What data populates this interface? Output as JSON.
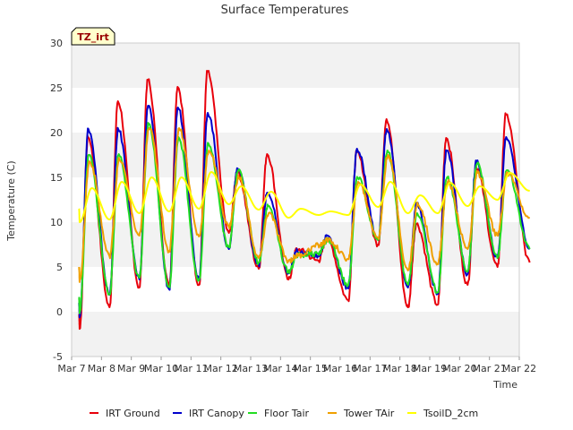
{
  "chart_data": {
    "type": "line",
    "title": "Surface Temperatures",
    "xlabel": "Time",
    "ylabel": "Temperature (C)",
    "badge": "TZ_irt",
    "ylim": [
      -5,
      30
    ],
    "xlim": [
      "2016-03-07",
      "2016-03-22"
    ],
    "yticks": [
      -5,
      0,
      5,
      10,
      15,
      20,
      25,
      30
    ],
    "xticks": [
      "Mar 7",
      "Mar 8",
      "Mar 9",
      "Mar 10",
      "Mar 11",
      "Mar 12",
      "Mar 13",
      "Mar 14",
      "Mar 15",
      "Mar 16",
      "Mar 17",
      "Mar 18",
      "Mar 19",
      "Mar 20",
      "Mar 21",
      "Mar 22"
    ],
    "grid": "horizontal bands",
    "legend": "bottom",
    "x_days": [
      "Mar 7",
      "Mar 8",
      "Mar 9",
      "Mar 10",
      "Mar 11",
      "Mar 12",
      "Mar 13",
      "Mar 14",
      "Mar 15",
      "Mar 16",
      "Mar 17",
      "Mar 18",
      "Mar 19",
      "Mar 20",
      "Mar 21"
    ],
    "series": [
      {
        "name": "IRT Ground",
        "color": "#e8000b",
        "daily_min": [
          -1.8,
          0.5,
          2.7,
          2.9,
          3.0,
          8.8,
          4.8,
          3.6,
          5.7,
          1.3,
          7.5,
          0.5,
          0.8,
          3.0,
          5.0
        ],
        "daily_max": [
          19.5,
          23.5,
          25.9,
          25.1,
          26.8,
          15.6,
          17.6,
          7.0,
          8.2,
          17.8,
          21.5,
          9.8,
          19.4,
          16.2,
          22.0
        ],
        "end_value": 5.5
      },
      {
        "name": "IRT Canopy",
        "color": "#0000cc",
        "daily_min": [
          -0.5,
          1.9,
          3.6,
          2.5,
          3.7,
          7.0,
          5.3,
          4.3,
          6.3,
          2.6,
          8.0,
          2.7,
          2.0,
          4.2,
          6.0
        ],
        "daily_max": [
          20.4,
          20.4,
          23.0,
          22.8,
          22.2,
          16.0,
          13.3,
          6.8,
          8.5,
          18.2,
          20.4,
          12.0,
          18.0,
          16.7,
          19.5
        ],
        "end_value": 7.0
      },
      {
        "name": "Floor Tair",
        "color": "#22dd22",
        "daily_min": [
          0.0,
          2.0,
          3.8,
          2.8,
          3.5,
          7.2,
          5.5,
          4.5,
          6.5,
          3.0,
          8.0,
          3.0,
          2.2,
          4.5,
          6.0
        ],
        "daily_max": [
          17.5,
          17.6,
          21.0,
          19.5,
          18.8,
          15.8,
          11.8,
          6.3,
          8.0,
          15.0,
          18.0,
          11.0,
          15.0,
          16.5,
          15.8
        ],
        "end_value": 7.0
      },
      {
        "name": "Tower TAir",
        "color": "#f0a000",
        "daily_min": [
          3.5,
          6.2,
          8.5,
          6.8,
          8.4,
          9.5,
          6.0,
          5.7,
          7.4,
          5.9,
          8.3,
          4.6,
          5.4,
          7.0,
          8.5
        ],
        "daily_max": [
          16.8,
          17.0,
          20.5,
          20.5,
          18.0,
          15.0,
          11.0,
          6.3,
          8.0,
          14.5,
          17.5,
          12.0,
          14.5,
          15.5,
          15.5
        ],
        "end_value": 10.5
      },
      {
        "name": "TsoilD_2cm",
        "color": "#ffff00",
        "daily_min": [
          10.0,
          10.3,
          11.0,
          11.2,
          11.5,
          12.0,
          11.4,
          10.5,
          10.8,
          10.8,
          11.7,
          11.0,
          11.0,
          11.8,
          12.5
        ],
        "daily_max": [
          13.8,
          14.5,
          15.0,
          15.0,
          15.6,
          14.0,
          13.4,
          11.5,
          11.2,
          14.2,
          14.5,
          13.0,
          14.4,
          14.0,
          15.5
        ],
        "end_value": 13.5
      }
    ]
  }
}
